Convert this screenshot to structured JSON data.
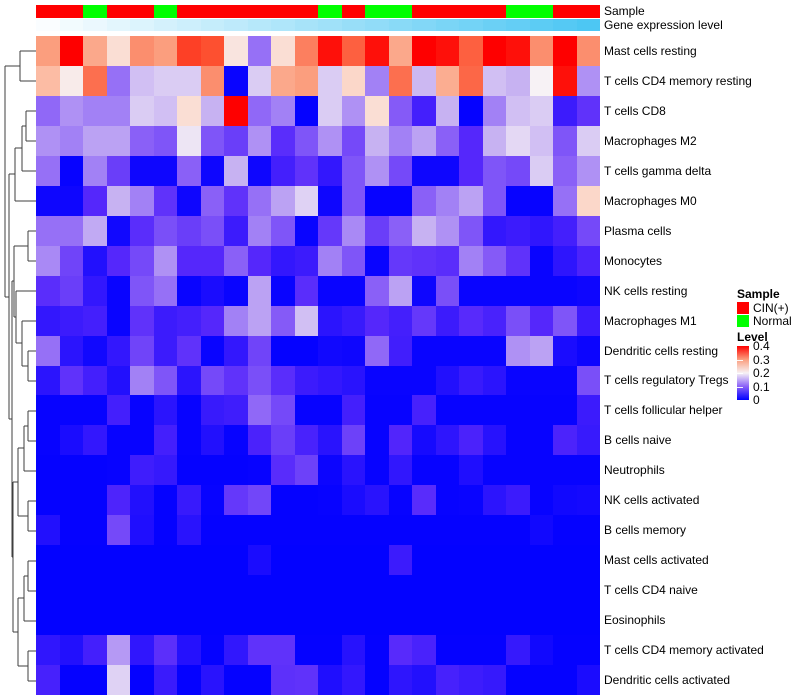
{
  "annotations": {
    "sample_label": "Sample",
    "gene_expression_label": "Gene expression level",
    "sample_colors": {
      "CIN(+)": "#ff0000",
      "Normal": "#00ff00"
    },
    "sample_per_column": [
      "CIN(+)",
      "CIN(+)",
      "Normal",
      "CIN(+)",
      "CIN(+)",
      "Normal",
      "CIN(+)",
      "CIN(+)",
      "CIN(+)",
      "CIN(+)",
      "CIN(+)",
      "CIN(+)",
      "Normal",
      "CIN(+)",
      "Normal",
      "Normal",
      "CIN(+)",
      "CIN(+)",
      "CIN(+)",
      "CIN(+)",
      "Normal",
      "Normal",
      "CIN(+)",
      "CIN(+)"
    ],
    "gene_expression_gradient": {
      "start": "#fafdff",
      "end": "#4dc7f3"
    }
  },
  "legend": {
    "sample": {
      "title": "Sample",
      "items": [
        {
          "label": "CIN(+)",
          "color": "#ff0000"
        },
        {
          "label": "Normal",
          "color": "#00ff00"
        }
      ]
    },
    "level": {
      "title": "Level",
      "tick_labels": [
        "0.4",
        "0.3",
        "0.2",
        "0.1",
        "0"
      ],
      "top_color": "#fe0000",
      "upper_mid_color": "#fb9e7e",
      "mid_color": "#f7f2f5",
      "lower_mid_color": "#8a60f7",
      "bottom_color": "#0000ff"
    }
  },
  "chart_data": {
    "type": "heatmap",
    "title": "",
    "columns": 24,
    "value_range": [
      0,
      0.4
    ],
    "colormap": "blue-white-red",
    "colormap_stops": [
      {
        "v": 0.0,
        "rgb": [
          0,
          0,
          255
        ]
      },
      {
        "v": 0.05,
        "rgb": [
          85,
          39,
          251
        ]
      },
      {
        "v": 0.1,
        "rgb": [
          138,
          96,
          247
        ]
      },
      {
        "v": 0.15,
        "rgb": [
          199,
          178,
          242
        ]
      },
      {
        "v": 0.2,
        "rgb": [
          247,
          242,
          245
        ]
      },
      {
        "v": 0.25,
        "rgb": [
          252,
          208,
          190
        ]
      },
      {
        "v": 0.3,
        "rgb": [
          251,
          158,
          126
        ]
      },
      {
        "v": 0.35,
        "rgb": [
          253,
          80,
          48
        ]
      },
      {
        "v": 0.4,
        "rgb": [
          254,
          0,
          0
        ]
      }
    ],
    "rows": [
      "Mast cells resting",
      "T cells CD4 memory resting",
      "T cells CD8",
      "Macrophages M2",
      "T cells gamma delta",
      "Macrophages M0",
      "Plasma cells",
      "Monocytes",
      "NK cells resting",
      "Macrophages M1",
      "Dendritic cells resting",
      "T cells regulatory  Tregs",
      "T cells follicular helper",
      "B cells naive",
      "Neutrophils",
      "NK cells activated",
      "B cells memory",
      "Mast cells activated",
      "T cells CD4 naive",
      "Eosinophils",
      "T cells CD4 memory activated",
      "Dendritic cells activated"
    ],
    "values": [
      [
        0.3,
        0.4,
        0.29,
        0.23,
        0.31,
        0.3,
        0.36,
        0.35,
        0.22,
        0.11,
        0.23,
        0.32,
        0.39,
        0.34,
        0.39,
        0.29,
        0.4,
        0.39,
        0.34,
        0.4,
        0.39,
        0.31,
        0.4,
        0.31
      ],
      [
        0.27,
        0.21,
        0.33,
        0.11,
        0.16,
        0.17,
        0.17,
        0.31,
        0.005,
        0.17,
        0.29,
        0.3,
        0.17,
        0.24,
        0.12,
        0.33,
        0.155,
        0.285,
        0.335,
        0.16,
        0.15,
        0.2,
        0.39,
        0.13
      ],
      [
        0.105,
        0.13,
        0.12,
        0.12,
        0.17,
        0.16,
        0.23,
        0.15,
        0.4,
        0.105,
        0.12,
        0.003,
        0.17,
        0.13,
        0.23,
        0.095,
        0.04,
        0.15,
        0.003,
        0.12,
        0.16,
        0.17,
        0.035,
        0.06
      ],
      [
        0.13,
        0.12,
        0.14,
        0.14,
        0.1,
        0.09,
        0.19,
        0.09,
        0.07,
        0.13,
        0.055,
        0.09,
        0.13,
        0.08,
        0.15,
        0.12,
        0.14,
        0.1,
        0.05,
        0.15,
        0.18,
        0.16,
        0.09,
        0.17
      ],
      [
        0.11,
        0.004,
        0.12,
        0.07,
        0.008,
        0.008,
        0.1,
        0.008,
        0.15,
        0.008,
        0.04,
        0.06,
        0.03,
        0.09,
        0.13,
        0.08,
        0.008,
        0.008,
        0.05,
        0.09,
        0.08,
        0.17,
        0.1,
        0.13
      ],
      [
        0.008,
        0.008,
        0.05,
        0.15,
        0.12,
        0.06,
        0.008,
        0.1,
        0.06,
        0.11,
        0.14,
        0.175,
        0.008,
        0.09,
        0.004,
        0.004,
        0.1,
        0.12,
        0.14,
        0.09,
        0.004,
        0.004,
        0.11,
        0.24
      ],
      [
        0.11,
        0.11,
        0.145,
        0.01,
        0.055,
        0.085,
        0.07,
        0.085,
        0.035,
        0.12,
        0.09,
        0.005,
        0.065,
        0.125,
        0.07,
        0.1,
        0.15,
        0.13,
        0.09,
        0.03,
        0.035,
        0.028,
        0.04,
        0.08
      ],
      [
        0.125,
        0.075,
        0.02,
        0.05,
        0.08,
        0.13,
        0.05,
        0.05,
        0.1,
        0.05,
        0.03,
        0.035,
        0.12,
        0.09,
        0.005,
        0.065,
        0.06,
        0.055,
        0.12,
        0.095,
        0.06,
        0.005,
        0.027,
        0.045
      ],
      [
        0.055,
        0.07,
        0.03,
        0.005,
        0.09,
        0.11,
        0.005,
        0.015,
        0.005,
        0.14,
        0.005,
        0.055,
        0.005,
        0.005,
        0.1,
        0.14,
        0.008,
        0.085,
        0.005,
        0.005,
        0.005,
        0.005,
        0.005,
        0.008
      ],
      [
        0.03,
        0.035,
        0.04,
        0.005,
        0.06,
        0.035,
        0.04,
        0.05,
        0.12,
        0.14,
        0.095,
        0.16,
        0.025,
        0.033,
        0.05,
        0.04,
        0.065,
        0.035,
        0.053,
        0.043,
        0.085,
        0.05,
        0.09,
        0.035
      ],
      [
        0.11,
        0.025,
        0.01,
        0.03,
        0.075,
        0.035,
        0.06,
        0.005,
        0.03,
        0.075,
        0.003,
        0.003,
        0.01,
        0.008,
        0.105,
        0.038,
        0.005,
        0.005,
        0.005,
        0.005,
        0.13,
        0.14,
        0.015,
        0.007
      ],
      [
        0.025,
        0.06,
        0.04,
        0.02,
        0.12,
        0.09,
        0.025,
        0.08,
        0.06,
        0.085,
        0.055,
        0.035,
        0.03,
        0.024,
        0.005,
        0.005,
        0.005,
        0.02,
        0.033,
        0.025,
        0.005,
        0.005,
        0.005,
        0.085
      ],
      [
        0.004,
        0.004,
        0.004,
        0.04,
        0.004,
        0.025,
        0.004,
        0.033,
        0.037,
        0.105,
        0.08,
        0.004,
        0.004,
        0.04,
        0.004,
        0.004,
        0.042,
        0.004,
        0.004,
        0.004,
        0.004,
        0.004,
        0.004,
        0.035
      ],
      [
        0.004,
        0.015,
        0.03,
        0.004,
        0.004,
        0.04,
        0.004,
        0.02,
        0.004,
        0.044,
        0.07,
        0.043,
        0.024,
        0.073,
        0.004,
        0.048,
        0.013,
        0.027,
        0.044,
        0.023,
        0.004,
        0.004,
        0.045,
        0.033
      ],
      [
        0.003,
        0.003,
        0.003,
        0.004,
        0.037,
        0.032,
        0.003,
        0.003,
        0.003,
        0.004,
        0.054,
        0.073,
        0.007,
        0.024,
        0.004,
        0.029,
        0.004,
        0.004,
        0.018,
        0.004,
        0.004,
        0.004,
        0.004,
        0.004
      ],
      [
        0.003,
        0.003,
        0.003,
        0.046,
        0.02,
        0.003,
        0.033,
        0.004,
        0.065,
        0.077,
        0.003,
        0.003,
        0.004,
        0.015,
        0.024,
        0.004,
        0.054,
        0.004,
        0.005,
        0.026,
        0.035,
        0.004,
        0.01,
        0.012
      ],
      [
        0.02,
        0.003,
        0.003,
        0.08,
        0.018,
        0.003,
        0.024,
        0.003,
        0.003,
        0.003,
        0.003,
        0.003,
        0.003,
        0.003,
        0.003,
        0.003,
        0.003,
        0.003,
        0.003,
        0.003,
        0.003,
        0.01,
        0.003,
        0.003
      ],
      [
        0.002,
        0.002,
        0.002,
        0.002,
        0.002,
        0.002,
        0.002,
        0.002,
        0.002,
        0.015,
        0.002,
        0.002,
        0.002,
        0.002,
        0.002,
        0.035,
        0.002,
        0.002,
        0.002,
        0.002,
        0.002,
        0.002,
        0.002,
        0.002
      ],
      [
        0.002,
        0.002,
        0.002,
        0.002,
        0.002,
        0.002,
        0.002,
        0.002,
        0.002,
        0.002,
        0.002,
        0.002,
        0.002,
        0.002,
        0.002,
        0.002,
        0.002,
        0.002,
        0.002,
        0.002,
        0.002,
        0.002,
        0.002,
        0.002
      ],
      [
        0.002,
        0.002,
        0.002,
        0.002,
        0.002,
        0.002,
        0.002,
        0.002,
        0.002,
        0.002,
        0.002,
        0.002,
        0.002,
        0.002,
        0.002,
        0.002,
        0.002,
        0.002,
        0.002,
        0.002,
        0.002,
        0.002,
        0.002,
        0.002
      ],
      [
        0.028,
        0.02,
        0.04,
        0.135,
        0.028,
        0.057,
        0.022,
        0.003,
        0.029,
        0.06,
        0.06,
        0.003,
        0.003,
        0.023,
        0.003,
        0.053,
        0.043,
        0.003,
        0.003,
        0.003,
        0.032,
        0.01,
        0.003,
        0.003
      ],
      [
        0.042,
        0.003,
        0.003,
        0.175,
        0.003,
        0.034,
        0.003,
        0.024,
        0.003,
        0.003,
        0.058,
        0.06,
        0.018,
        0.03,
        0.003,
        0.027,
        0.02,
        0.042,
        0.036,
        0.032,
        0.003,
        0.003,
        0.003,
        0.016
      ]
    ]
  }
}
